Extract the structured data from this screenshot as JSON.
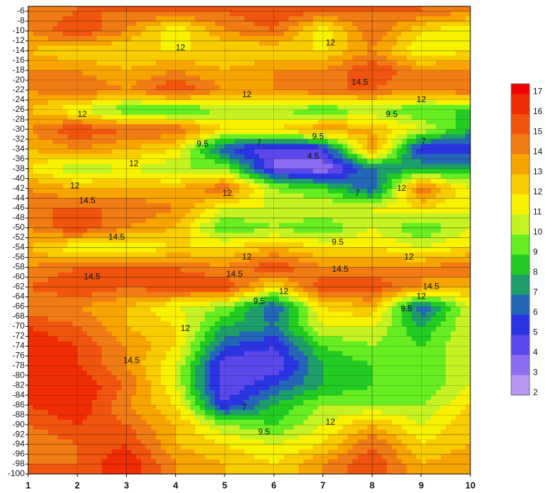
{
  "chart_data": {
    "type": "contour",
    "x": [
      1,
      2,
      3,
      4,
      5,
      6,
      7,
      8,
      9,
      10
    ],
    "y": [
      -6,
      -10,
      -14,
      -18,
      -22,
      -26,
      -30,
      -34,
      -38,
      -42,
      -46,
      -50,
      -54,
      -58,
      -62,
      -66,
      -70,
      -74,
      -78,
      -82,
      -86,
      -90,
      -94,
      -98
    ],
    "z": [
      [
        14,
        15,
        15,
        15,
        15,
        16,
        15,
        15,
        15,
        14
      ],
      [
        14,
        16,
        14,
        11,
        14,
        15,
        11,
        15,
        12,
        11
      ],
      [
        13,
        12,
        12,
        12,
        12,
        12,
        12,
        14,
        11,
        12
      ],
      [
        14,
        14,
        13,
        14,
        13,
        14,
        14,
        16,
        14,
        14
      ],
      [
        14,
        15,
        14,
        16,
        14,
        14,
        15,
        15,
        14,
        15
      ],
      [
        13,
        11,
        9,
        8.5,
        10,
        10,
        9,
        10,
        9,
        9
      ],
      [
        14,
        16,
        15,
        15,
        12,
        12,
        14,
        13,
        11,
        8
      ],
      [
        13,
        14,
        13,
        12,
        6,
        4,
        5,
        14,
        5,
        5
      ],
      [
        12,
        10,
        11,
        10,
        10,
        4,
        3,
        7,
        8,
        8
      ],
      [
        14,
        13,
        13,
        13,
        15,
        10,
        9,
        6,
        15,
        11
      ],
      [
        15,
        15,
        15,
        14,
        11,
        11,
        11,
        11,
        12,
        11
      ],
      [
        14,
        16,
        14,
        13,
        9,
        10,
        9,
        11,
        9,
        11
      ],
      [
        13,
        11,
        11,
        12,
        12,
        13,
        12,
        12,
        11,
        12
      ],
      [
        14,
        15,
        15,
        15,
        14,
        16,
        14,
        14,
        14,
        15
      ],
      [
        15,
        16,
        15,
        16,
        16,
        12,
        16,
        16,
        14,
        13
      ],
      [
        14,
        14,
        13,
        11,
        10,
        6,
        12,
        13,
        6,
        11
      ],
      [
        16,
        15,
        13,
        12,
        8,
        7,
        11,
        11,
        8,
        11
      ],
      [
        17,
        16,
        14,
        12,
        6,
        5,
        9,
        10,
        9,
        11
      ],
      [
        16,
        16,
        14,
        11,
        4,
        4,
        8,
        9,
        9,
        11
      ],
      [
        16,
        17,
        15,
        11,
        4,
        6,
        8,
        9,
        9,
        11
      ],
      [
        16,
        17,
        14,
        12,
        5,
        8,
        10,
        10,
        10,
        12
      ],
      [
        15,
        16,
        15,
        13,
        10,
        9,
        11,
        13,
        11,
        13
      ],
      [
        14,
        15,
        16,
        13,
        12,
        11,
        12,
        15,
        12,
        13
      ],
      [
        15,
        15,
        17,
        14,
        13,
        12,
        14,
        16,
        13,
        14
      ]
    ],
    "xlim": [
      1,
      10
    ],
    "ylim": [
      -100,
      -5
    ],
    "xticks": [
      1,
      2,
      3,
      4,
      5,
      6,
      7,
      8,
      9,
      10
    ],
    "yticks": [
      -6,
      -8,
      -10,
      -12,
      -14,
      -16,
      -18,
      -20,
      -22,
      -24,
      -26,
      -28,
      -30,
      -32,
      -34,
      -36,
      -38,
      -40,
      -42,
      -44,
      -46,
      -48,
      -50,
      -52,
      -54,
      -56,
      -58,
      -60,
      -62,
      -64,
      -66,
      -68,
      -70,
      -72,
      -74,
      -76,
      -78,
      -80,
      -82,
      -84,
      -86,
      -88,
      -90,
      -92,
      -94,
      -96,
      -98,
      -100
    ],
    "grid": true,
    "zlim": [
      2,
      17.5
    ],
    "zticks": [
      2,
      3,
      4,
      5,
      6,
      7,
      8,
      9,
      10,
      11,
      12,
      13,
      14,
      15,
      16,
      17
    ],
    "colors": [
      "#b896f4",
      "#8c6cf0",
      "#5a48ea",
      "#2a34e2",
      "#2466b8",
      "#1e9e6a",
      "#22cc22",
      "#66ee22",
      "#c4f222",
      "#f8f200",
      "#f8cc00",
      "#f8a400",
      "#f27c14",
      "#f0540e",
      "#f02c02",
      "#f00000"
    ],
    "annotations": [
      {
        "text": "12",
        "x": 4.1,
        "y": -13.5
      },
      {
        "text": "12",
        "x": 7.15,
        "y": -12.5
      },
      {
        "text": "14.5",
        "x": 7.75,
        "y": -20.5
      },
      {
        "text": "12",
        "x": 5.45,
        "y": -23
      },
      {
        "text": "12",
        "x": 9,
        "y": -24
      },
      {
        "text": "9.5",
        "x": 8.4,
        "y": -27
      },
      {
        "text": "12",
        "x": 2.1,
        "y": -27
      },
      {
        "text": "9.5",
        "x": 4.55,
        "y": -33
      },
      {
        "text": "7",
        "x": 5.7,
        "y": -32.7
      },
      {
        "text": "9.5",
        "x": 6.9,
        "y": -31.5
      },
      {
        "text": "4.5",
        "x": 6.8,
        "y": -35.5
      },
      {
        "text": "7",
        "x": 9.05,
        "y": -32.5
      },
      {
        "text": "12",
        "x": 3.15,
        "y": -37
      },
      {
        "text": "12",
        "x": 1.95,
        "y": -41.5
      },
      {
        "text": "14.5",
        "x": 2.2,
        "y": -44.5
      },
      {
        "text": "12",
        "x": 5.05,
        "y": -43
      },
      {
        "text": "7",
        "x": 7.7,
        "y": -43
      },
      {
        "text": "12",
        "x": 8.6,
        "y": -42
      },
      {
        "text": "14.5",
        "x": 2.8,
        "y": -52
      },
      {
        "text": "9.5",
        "x": 7.3,
        "y": -53
      },
      {
        "text": "12",
        "x": 5.45,
        "y": -56
      },
      {
        "text": "12",
        "x": 8.75,
        "y": -56
      },
      {
        "text": "14.5",
        "x": 2.3,
        "y": -60
      },
      {
        "text": "14.5",
        "x": 5.2,
        "y": -59.5
      },
      {
        "text": "14.5",
        "x": 7.35,
        "y": -58.5
      },
      {
        "text": "14.5",
        "x": 9.2,
        "y": -62
      },
      {
        "text": "12",
        "x": 9,
        "y": -64
      },
      {
        "text": "9.5",
        "x": 5.7,
        "y": -65
      },
      {
        "text": "12",
        "x": 6.2,
        "y": -63
      },
      {
        "text": "9.5",
        "x": 8.7,
        "y": -66.5
      },
      {
        "text": "12",
        "x": 4.2,
        "y": -70.5
      },
      {
        "text": "14.5",
        "x": 3.1,
        "y": -77
      },
      {
        "text": "7",
        "x": 5.4,
        "y": -86.5
      },
      {
        "text": "9.5",
        "x": 5.8,
        "y": -91.5
      },
      {
        "text": "12",
        "x": 7.15,
        "y": -89.5
      }
    ]
  }
}
